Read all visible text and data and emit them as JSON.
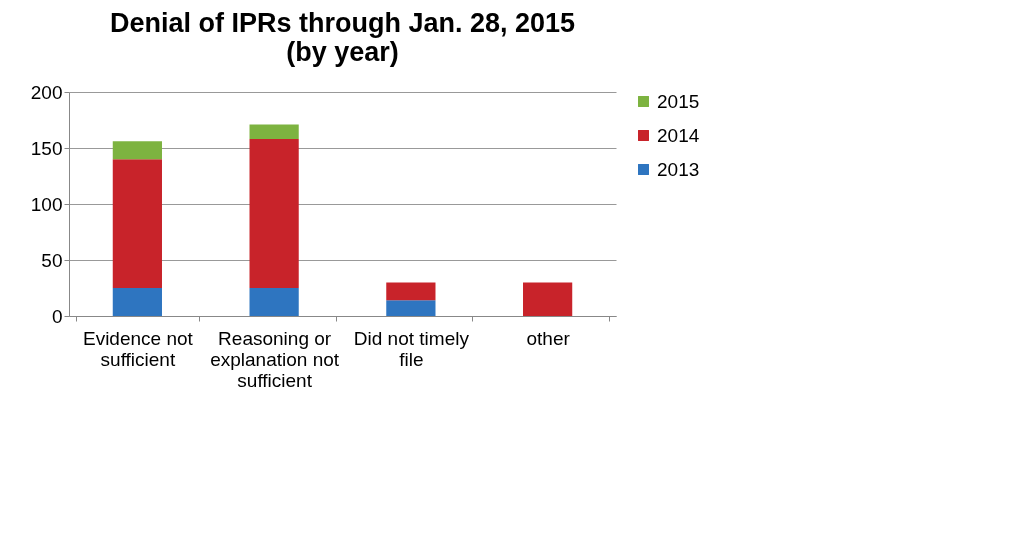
{
  "chart_data": {
    "type": "bar",
    "title": "Denial of IPRs through Jan. 28, 2015\n(by year)",
    "categories": [
      "Evidence not sufficient",
      "Reasoning or explanation not sufficient",
      "Did not timely file",
      "other"
    ],
    "stacked": true,
    "series": [
      {
        "name": "2013",
        "color": "#2e75c0",
        "values": [
          25,
          25,
          14,
          0
        ]
      },
      {
        "name": "2014",
        "color": "#c8232a",
        "values": [
          115,
          133,
          16,
          30
        ]
      },
      {
        "name": "2015",
        "color": "#7db340",
        "values": [
          16,
          13,
          0,
          0
        ]
      }
    ],
    "ylim": [
      0,
      200
    ],
    "yticks": [
      0,
      50,
      100,
      150,
      200
    ],
    "grid": "y",
    "legend": "right"
  }
}
